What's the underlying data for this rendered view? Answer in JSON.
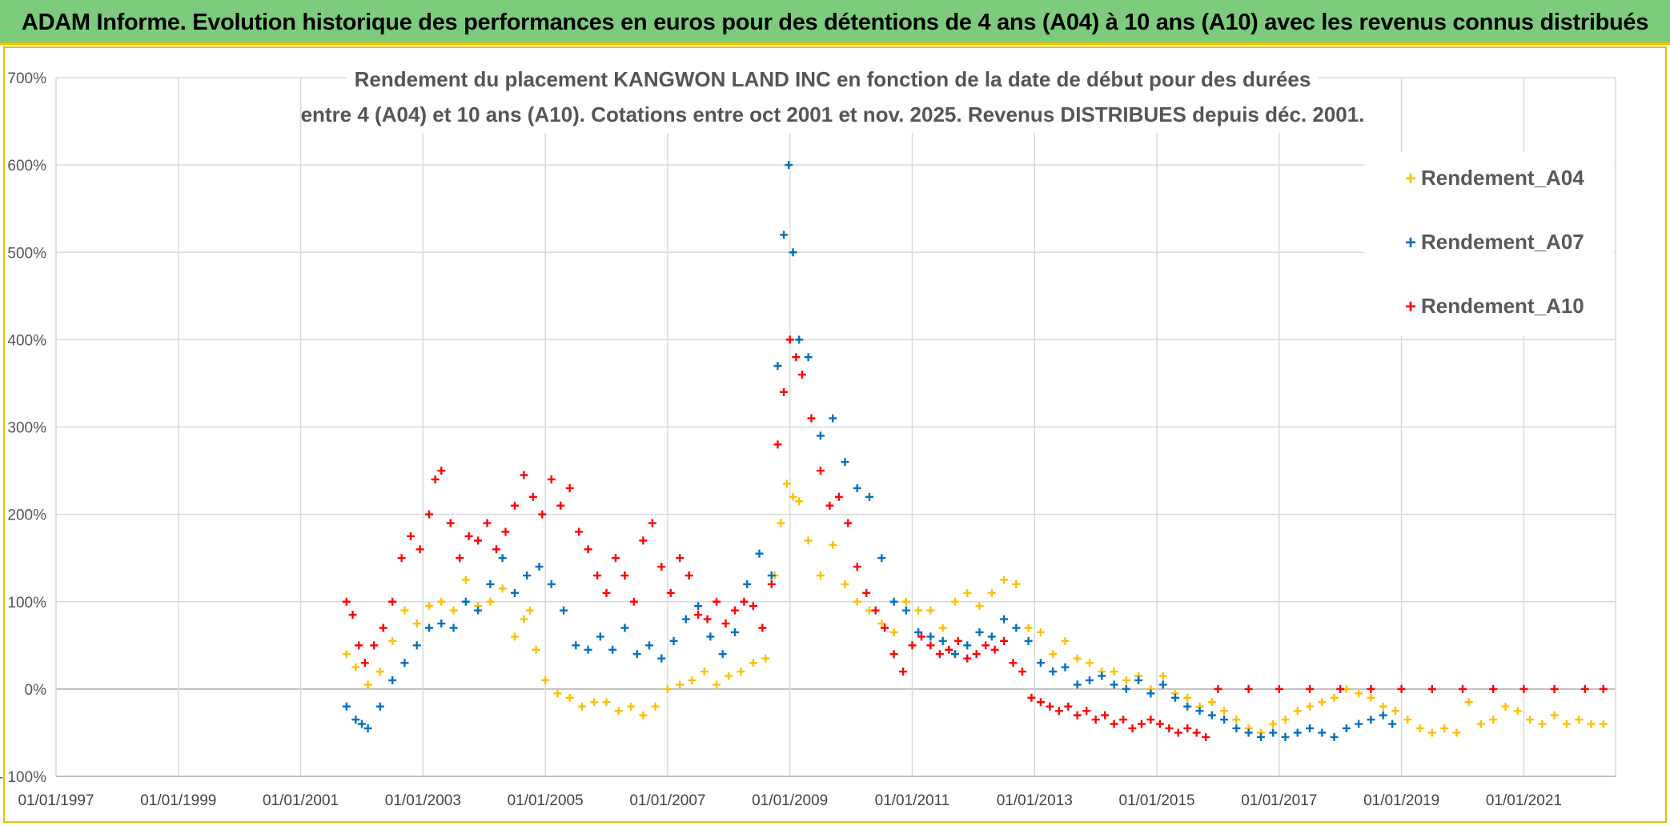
{
  "header": {
    "title": "ADAM Informe. Evolution historique des performances en euros pour des détentions de 4 ans (A04) à 10 ans (A10) avec les revenus connus distribués"
  },
  "colors": {
    "banner": "#7dcc7d",
    "A04": "#ffc000",
    "A07": "#0070c0",
    "A10": "#ff0000",
    "grid": "#d9d9d9"
  },
  "chart_data": {
    "type": "scatter",
    "title_lines": [
      "Rendement du placement KANGWON LAND INC en fonction de la date de début pour des durées",
      "entre 4 (A04) et 10 ans (A10). Cotations entre oct 2001 et nov. 2025. Revenus DISTRIBUES depuis déc. 2001."
    ],
    "xlabel": "",
    "ylabel": "",
    "xlim": [
      1997.0,
      2022.5
    ],
    "ylim": [
      -100,
      700
    ],
    "x_ticks": [
      "01/01/1997",
      "01/01/1999",
      "01/01/2001",
      "01/01/2003",
      "01/01/2005",
      "01/01/2007",
      "01/01/2009",
      "01/01/2011",
      "01/01/2013",
      "01/01/2015",
      "01/01/2017",
      "01/01/2019",
      "01/01/2021"
    ],
    "x_tick_values": [
      1997,
      1999,
      2001,
      2003,
      2005,
      2007,
      2009,
      2011,
      2013,
      2015,
      2017,
      2019,
      2021
    ],
    "y_ticks": [
      "700%",
      "600%",
      "500%",
      "400%",
      "300%",
      "200%",
      "100%",
      "0%",
      "- 100%"
    ],
    "y_tick_values": [
      700,
      600,
      500,
      400,
      300,
      200,
      100,
      0,
      -100
    ],
    "legend": [
      "Rendement_A04",
      "Rendement_A07",
      "Rendement_A10"
    ],
    "legend_position": "top-right",
    "series": [
      {
        "name": "Rendement_A04",
        "x": [
          2001.75,
          2001.9,
          2002.1,
          2002.3,
          2002.5,
          2002.7,
          2002.9,
          2003.1,
          2003.3,
          2003.5,
          2003.7,
          2003.9,
          2004.1,
          2004.3,
          2004.5,
          2004.65,
          2004.75,
          2004.85,
          2005.0,
          2005.2,
          2005.4,
          2005.6,
          2005.8,
          2006.0,
          2006.2,
          2006.4,
          2006.6,
          2006.8,
          2007.0,
          2007.2,
          2007.4,
          2007.6,
          2007.8,
          2008.0,
          2008.2,
          2008.4,
          2008.6,
          2008.75,
          2008.85,
          2008.95,
          2009.05,
          2009.15,
          2009.3,
          2009.5,
          2009.7,
          2009.9,
          2010.1,
          2010.3,
          2010.5,
          2010.7,
          2010.9,
          2011.1,
          2011.3,
          2011.5,
          2011.7,
          2011.9,
          2012.1,
          2012.3,
          2012.5,
          2012.7,
          2012.9,
          2013.1,
          2013.3,
          2013.5,
          2013.7,
          2013.9,
          2014.1,
          2014.3,
          2014.5,
          2014.7,
          2014.9,
          2015.1,
          2015.3,
          2015.5,
          2015.7,
          2015.9,
          2016.1,
          2016.3,
          2016.5,
          2016.7,
          2016.9,
          2017.1,
          2017.3,
          2017.5,
          2017.7,
          2017.9,
          2018.1,
          2018.3,
          2018.5,
          2018.7,
          2018.9,
          2019.1,
          2019.3,
          2019.5,
          2019.7,
          2019.9,
          2020.1,
          2020.3,
          2020.5,
          2020.7,
          2020.9,
          2021.1,
          2021.3,
          2021.5,
          2021.7,
          2021.9,
          2022.1,
          2022.3
        ],
        "values": [
          40,
          25,
          5,
          20,
          55,
          90,
          75,
          95,
          100,
          90,
          125,
          95,
          100,
          115,
          60,
          80,
          90,
          45,
          10,
          -5,
          -10,
          -20,
          -15,
          -15,
          -25,
          -20,
          -30,
          -20,
          0,
          5,
          10,
          20,
          5,
          15,
          20,
          30,
          35,
          130,
          190,
          235,
          220,
          215,
          170,
          130,
          165,
          120,
          100,
          90,
          75,
          65,
          100,
          90,
          90,
          70,
          100,
          110,
          95,
          110,
          125,
          120,
          70,
          65,
          40,
          55,
          35,
          30,
          20,
          20,
          10,
          15,
          0,
          15,
          -5,
          -10,
          -20,
          -15,
          -25,
          -35,
          -45,
          -50,
          -40,
          -35,
          -25,
          -20,
          -15,
          -10,
          0,
          -5,
          -10,
          -20,
          -25,
          -35,
          -45,
          -50,
          -45,
          -50,
          -15,
          -40,
          -35,
          -20,
          -25,
          -35,
          -40,
          -30,
          -40,
          -35,
          -40,
          -40
        ]
      },
      {
        "name": "Rendement_A07",
        "x": [
          2001.75,
          2001.9,
          2002.0,
          2002.1,
          2002.3,
          2002.5,
          2002.7,
          2002.9,
          2003.1,
          2003.3,
          2003.5,
          2003.7,
          2003.9,
          2004.1,
          2004.3,
          2004.5,
          2004.7,
          2004.9,
          2005.1,
          2005.3,
          2005.5,
          2005.7,
          2005.9,
          2006.1,
          2006.3,
          2006.5,
          2006.7,
          2006.9,
          2007.1,
          2007.3,
          2007.5,
          2007.7,
          2007.9,
          2008.1,
          2008.3,
          2008.5,
          2008.7,
          2008.8,
          2008.9,
          2008.98,
          2009.05,
          2009.15,
          2009.3,
          2009.5,
          2009.7,
          2009.9,
          2010.1,
          2010.3,
          2010.5,
          2010.7,
          2010.9,
          2011.1,
          2011.3,
          2011.5,
          2011.7,
          2011.9,
          2012.1,
          2012.3,
          2012.5,
          2012.7,
          2012.9,
          2013.1,
          2013.3,
          2013.5,
          2013.7,
          2013.9,
          2014.1,
          2014.3,
          2014.5,
          2014.7,
          2014.9,
          2015.1,
          2015.3,
          2015.5,
          2015.7,
          2015.9,
          2016.1,
          2016.3,
          2016.5,
          2016.7,
          2016.9,
          2017.1,
          2017.3,
          2017.5,
          2017.7,
          2017.9,
          2018.1,
          2018.3,
          2018.5,
          2018.7,
          2018.85
        ],
        "values": [
          -20,
          -35,
          -40,
          -45,
          -20,
          10,
          30,
          50,
          70,
          75,
          70,
          100,
          90,
          120,
          150,
          110,
          130,
          140,
          120,
          90,
          50,
          45,
          60,
          45,
          70,
          40,
          50,
          35,
          55,
          80,
          95,
          60,
          40,
          65,
          120,
          155,
          130,
          370,
          520,
          600,
          500,
          400,
          380,
          290,
          310,
          260,
          230,
          220,
          150,
          100,
          90,
          65,
          60,
          55,
          40,
          50,
          65,
          60,
          80,
          70,
          55,
          30,
          20,
          25,
          5,
          10,
          15,
          5,
          0,
          10,
          -5,
          5,
          -10,
          -20,
          -25,
          -30,
          -35,
          -45,
          -50,
          -55,
          -50,
          -55,
          -50,
          -45,
          -50,
          -55,
          -45,
          -40,
          -35,
          -30,
          -40
        ]
      },
      {
        "name": "Rendement_A10",
        "x": [
          2001.75,
          2001.85,
          2001.95,
          2002.05,
          2002.2,
          2002.35,
          2002.5,
          2002.65,
          2002.8,
          2002.95,
          2003.1,
          2003.2,
          2003.3,
          2003.45,
          2003.6,
          2003.75,
          2003.9,
          2004.05,
          2004.2,
          2004.35,
          2004.5,
          2004.65,
          2004.8,
          2004.95,
          2005.1,
          2005.25,
          2005.4,
          2005.55,
          2005.7,
          2005.85,
          2006.0,
          2006.15,
          2006.3,
          2006.45,
          2006.6,
          2006.75,
          2006.9,
          2007.05,
          2007.2,
          2007.35,
          2007.5,
          2007.65,
          2007.8,
          2007.95,
          2008.1,
          2008.25,
          2008.4,
          2008.55,
          2008.7,
          2008.8,
          2008.9,
          2009.0,
          2009.1,
          2009.2,
          2009.35,
          2009.5,
          2009.65,
          2009.8,
          2009.95,
          2010.1,
          2010.25,
          2010.4,
          2010.55,
          2010.7,
          2010.85,
          2011.0,
          2011.15,
          2011.3,
          2011.45,
          2011.6,
          2011.75,
          2011.9,
          2012.05,
          2012.2,
          2012.35,
          2012.5,
          2012.65,
          2012.8,
          2012.95,
          2013.1,
          2013.25,
          2013.4,
          2013.55,
          2013.7,
          2013.85,
          2014.0,
          2014.15,
          2014.3,
          2014.45,
          2014.6,
          2014.75,
          2014.9,
          2015.05,
          2015.2,
          2015.35,
          2015.5,
          2015.65,
          2015.8,
          2016.0,
          2016.5,
          2017.0,
          2017.5,
          2018.0,
          2018.5,
          2019.0,
          2019.5,
          2020.0,
          2020.5,
          2021.0,
          2021.5,
          2022.0,
          2022.3
        ],
        "values": [
          100,
          85,
          50,
          30,
          50,
          70,
          100,
          150,
          175,
          160,
          200,
          240,
          250,
          190,
          150,
          175,
          170,
          190,
          160,
          180,
          210,
          245,
          220,
          200,
          240,
          210,
          230,
          180,
          160,
          130,
          110,
          150,
          130,
          100,
          170,
          190,
          140,
          110,
          150,
          130,
          85,
          80,
          100,
          75,
          90,
          100,
          95,
          70,
          120,
          280,
          340,
          400,
          380,
          360,
          310,
          250,
          210,
          220,
          190,
          140,
          110,
          90,
          70,
          40,
          20,
          50,
          60,
          50,
          40,
          45,
          55,
          35,
          40,
          50,
          45,
          55,
          30,
          20,
          -10,
          -15,
          -20,
          -25,
          -20,
          -30,
          -25,
          -35,
          -30,
          -40,
          -35,
          -45,
          -40,
          -35,
          -40,
          -45,
          -50,
          -45,
          -50,
          -55,
          0,
          0,
          0,
          0,
          0,
          0,
          0,
          0,
          0,
          0,
          0,
          0,
          0,
          0
        ]
      }
    ]
  }
}
